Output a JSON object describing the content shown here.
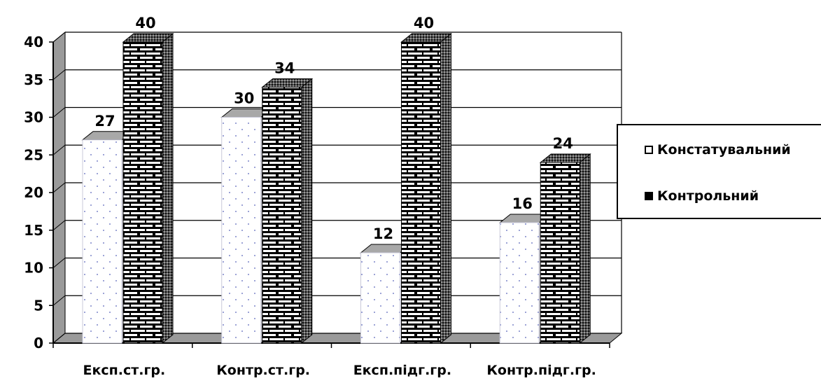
{
  "chart_data": {
    "type": "bar",
    "categories": [
      "Експ.ст.гр.",
      "Контр.ст.гр.",
      "Експ.підг.гр.",
      "Контр.підг.гр."
    ],
    "series": [
      {
        "name": "Констатувальний",
        "values": [
          27,
          30,
          12,
          16
        ],
        "color": "#ffffff",
        "pattern": "dots"
      },
      {
        "name": "Контрольний",
        "values": [
          40,
          34,
          40,
          24
        ],
        "color": "#000000",
        "pattern": "bricks"
      }
    ],
    "ylim": [
      0,
      40
    ],
    "yticks": [
      0,
      5,
      10,
      15,
      20,
      25,
      30,
      35,
      40
    ],
    "grid": true,
    "legend": "right",
    "data_labels": true,
    "style": "3d-column"
  }
}
